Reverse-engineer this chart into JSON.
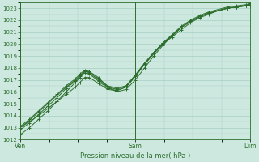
{
  "xlabel": "Pression niveau de la mer( hPa )",
  "bg_color": "#cce8df",
  "grid_color": "#a8cfc4",
  "line_color": "#2d6e2d",
  "marker_color": "#2d6e2d",
  "ylim": [
    1012,
    1023.5
  ],
  "yticks": [
    1012,
    1013,
    1014,
    1015,
    1016,
    1017,
    1018,
    1019,
    1020,
    1021,
    1022,
    1023
  ],
  "xtick_labels": [
    "Ven",
    "Sam",
    "Dim"
  ],
  "xtick_positions": [
    0.0,
    0.5,
    1.0
  ],
  "series": [
    {
      "x": [
        0.0,
        0.04,
        0.08,
        0.12,
        0.16,
        0.2,
        0.24,
        0.26,
        0.28,
        0.3,
        0.34,
        0.38,
        0.42,
        0.46,
        0.5,
        0.54,
        0.58,
        0.62,
        0.66,
        0.7,
        0.74,
        0.78,
        0.82,
        0.86,
        0.9,
        0.94,
        0.98,
        1.0
      ],
      "y": [
        1012.4,
        1013.0,
        1013.7,
        1014.4,
        1015.2,
        1016.0,
        1016.8,
        1017.2,
        1017.7,
        1017.7,
        1017.2,
        1016.4,
        1016.0,
        1016.2,
        1017.0,
        1018.0,
        1019.0,
        1019.9,
        1020.7,
        1021.4,
        1021.9,
        1022.3,
        1022.6,
        1022.8,
        1023.0,
        1023.1,
        1023.2,
        1023.2
      ]
    },
    {
      "x": [
        0.0,
        0.04,
        0.08,
        0.12,
        0.16,
        0.2,
        0.24,
        0.26,
        0.28,
        0.3,
        0.34,
        0.38,
        0.42,
        0.46,
        0.5,
        0.54,
        0.58,
        0.62,
        0.66,
        0.7,
        0.74,
        0.78,
        0.82,
        0.86,
        0.9,
        0.94,
        0.98,
        1.0
      ],
      "y": [
        1012.8,
        1013.4,
        1014.1,
        1014.8,
        1015.5,
        1016.3,
        1016.9,
        1017.3,
        1017.6,
        1017.5,
        1016.9,
        1016.3,
        1016.1,
        1016.4,
        1017.3,
        1018.3,
        1019.2,
        1020.0,
        1020.7,
        1021.4,
        1021.9,
        1022.3,
        1022.6,
        1022.8,
        1023.0,
        1023.1,
        1023.2,
        1023.3
      ]
    },
    {
      "x": [
        0.0,
        0.04,
        0.08,
        0.12,
        0.16,
        0.2,
        0.24,
        0.26,
        0.28,
        0.3,
        0.34,
        0.38,
        0.42,
        0.46,
        0.5,
        0.54,
        0.58,
        0.62,
        0.66,
        0.7,
        0.74,
        0.78,
        0.82,
        0.86,
        0.9,
        0.94,
        0.98,
        1.0
      ],
      "y": [
        1013.0,
        1013.6,
        1014.3,
        1015.0,
        1015.7,
        1016.4,
        1017.0,
        1017.4,
        1017.7,
        1017.6,
        1017.0,
        1016.4,
        1016.2,
        1016.5,
        1017.4,
        1018.4,
        1019.3,
        1020.1,
        1020.7,
        1021.4,
        1021.9,
        1022.3,
        1022.6,
        1022.8,
        1023.0,
        1023.1,
        1023.25,
        1023.35
      ]
    },
    {
      "x": [
        0.0,
        0.04,
        0.08,
        0.12,
        0.16,
        0.2,
        0.24,
        0.26,
        0.28,
        0.3,
        0.34,
        0.38,
        0.42,
        0.46,
        0.5,
        0.54,
        0.58,
        0.62,
        0.66,
        0.7,
        0.74,
        0.78,
        0.82,
        0.86,
        0.9,
        0.94,
        0.98,
        1.0
      ],
      "y": [
        1013.0,
        1013.5,
        1014.0,
        1014.6,
        1015.2,
        1015.8,
        1016.4,
        1016.8,
        1017.2,
        1017.2,
        1016.7,
        1016.2,
        1016.1,
        1016.4,
        1017.3,
        1018.3,
        1019.2,
        1020.0,
        1020.6,
        1021.2,
        1021.8,
        1022.2,
        1022.5,
        1022.8,
        1023.0,
        1023.1,
        1023.2,
        1023.3
      ]
    },
    {
      "x": [
        0.0,
        0.04,
        0.08,
        0.12,
        0.16,
        0.2,
        0.24,
        0.26,
        0.28,
        0.3,
        0.34,
        0.38,
        0.42,
        0.46,
        0.5,
        0.54,
        0.58,
        0.62,
        0.66,
        0.7,
        0.74,
        0.78,
        0.82,
        0.86,
        0.9,
        0.94,
        0.98,
        1.0
      ],
      "y": [
        1013.1,
        1013.7,
        1014.4,
        1015.1,
        1015.8,
        1016.5,
        1017.1,
        1017.5,
        1017.8,
        1017.7,
        1017.1,
        1016.5,
        1016.3,
        1016.5,
        1017.4,
        1018.4,
        1019.3,
        1020.1,
        1020.8,
        1021.5,
        1022.0,
        1022.4,
        1022.7,
        1022.9,
        1023.1,
        1023.2,
        1023.3,
        1023.4
      ]
    }
  ]
}
